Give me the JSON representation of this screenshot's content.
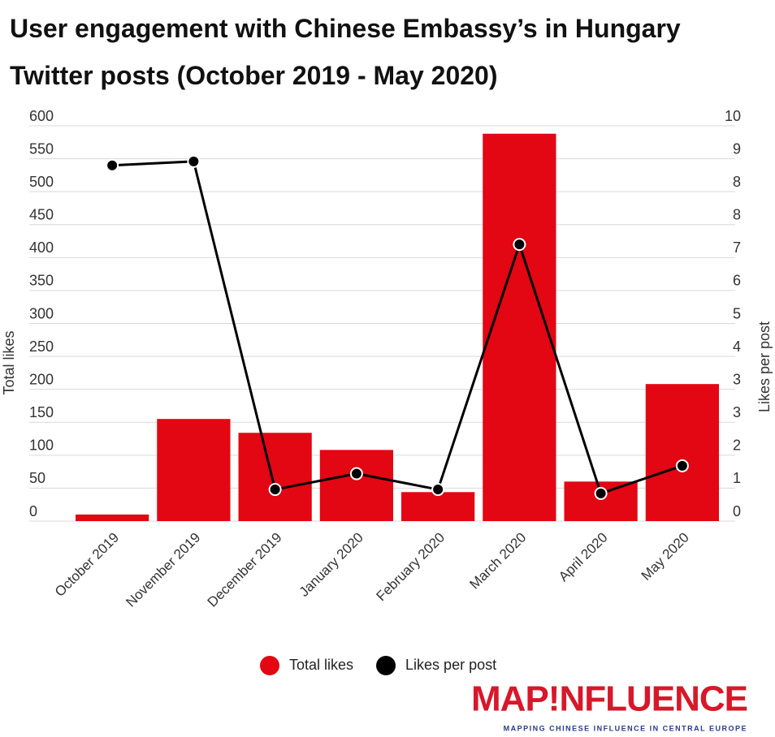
{
  "chart_data": {
    "type": "bar_line",
    "title": "User engagement with Chinese Embassy’s in Hungary Twitter posts (October 2019 - May 2020)",
    "categories": [
      "October 2019",
      "November 2019",
      "December 2019",
      "January 2020",
      "February 2020",
      "March 2020",
      "April 2020",
      "May 2020"
    ],
    "series": [
      {
        "name": "Total likes",
        "color": "#e30613",
        "type": "bar",
        "values": [
          10,
          155,
          134,
          108,
          44,
          588,
          60,
          208
        ]
      },
      {
        "name": "Likes per post",
        "color": "#000000",
        "type": "line",
        "axis": "y2",
        "values": [
          9.0,
          9.1,
          0.8,
          1.2,
          0.8,
          7.0,
          0.7,
          1.4
        ]
      }
    ],
    "ylabel": "Total likes",
    "y2label": "Likes per post",
    "ylim": [
      0,
      600
    ],
    "yticks": [
      0,
      50,
      100,
      150,
      200,
      250,
      300,
      350,
      400,
      450,
      500,
      550,
      600
    ],
    "y2lim": [
      0,
      10
    ],
    "y2ticks": [
      0,
      {
        "value": 0.8333,
        "label": "1"
      },
      {
        "value": 1.6667,
        "label": "2"
      },
      {
        "value": 2.5,
        "label": "3"
      },
      {
        "value": 3.3333,
        "label": "3"
      },
      {
        "value": 4.1667,
        "label": "4"
      },
      5,
      {
        "value": 5.8333,
        "label": "6"
      },
      {
        "value": 6.6667,
        "label": "7"
      },
      {
        "value": 7.5,
        "label": "8"
      },
      {
        "value": 8.3333,
        "label": "8"
      },
      {
        "value": 9.1667,
        "label": "9"
      },
      10
    ],
    "grid": true,
    "legend": "bottom",
    "logo_text": "MAP!NFLUENCE",
    "logo_tagline": "MAPPING CHINESE INFLUENCE IN CENTRAL EUROPE"
  }
}
